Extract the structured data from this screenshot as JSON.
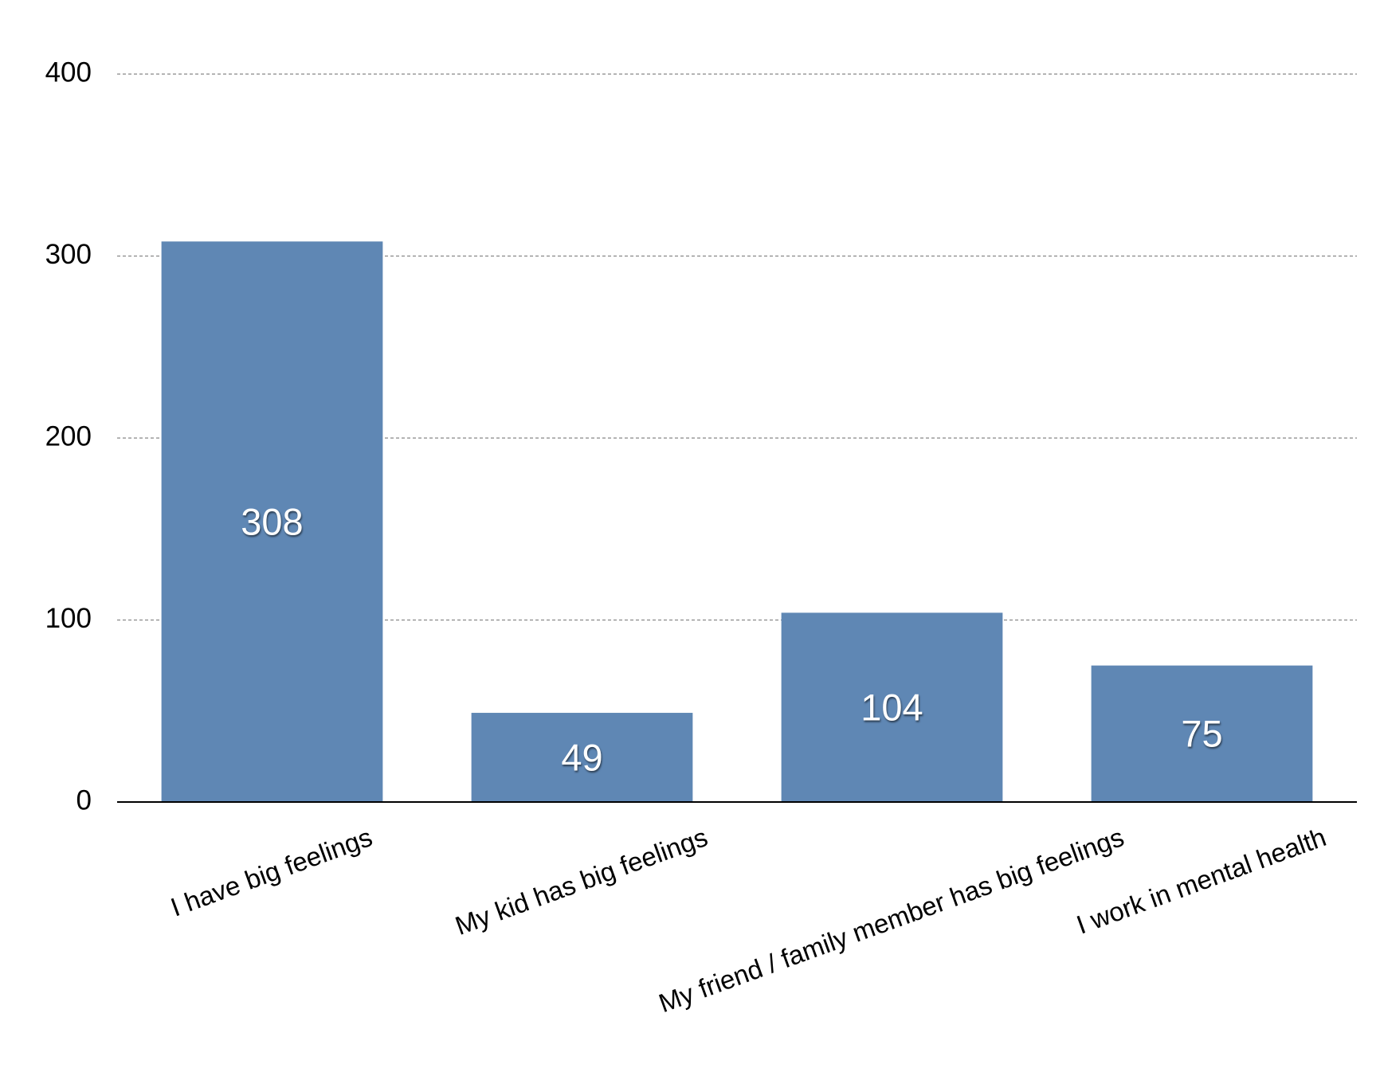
{
  "chart_data": {
    "type": "bar",
    "categories": [
      "I have big feelings",
      "My kid has big feelings",
      "My friend / family member has big feelings",
      "I work in mental health"
    ],
    "values": [
      308,
      49,
      104,
      75
    ],
    "color": "#5f87b4",
    "ylim": [
      0,
      400
    ],
    "yticks": [
      0,
      100,
      200,
      300,
      400
    ],
    "grid": true
  }
}
